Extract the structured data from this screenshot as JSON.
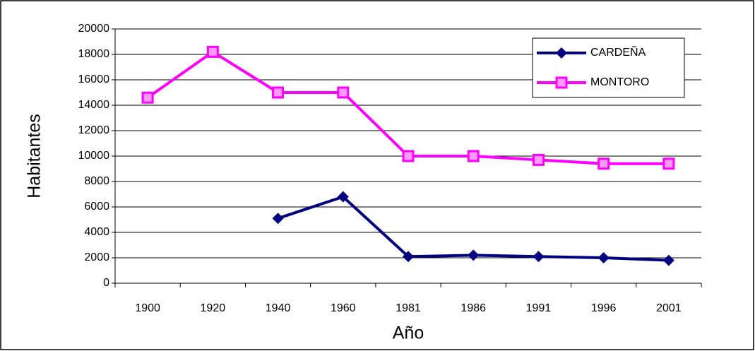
{
  "chart_data": {
    "type": "line",
    "x_label": "Año",
    "y_label": "Habitantes",
    "categories": [
      "1900",
      "1920",
      "1940",
      "1960",
      "1981",
      "1986",
      "1991",
      "1996",
      "2001"
    ],
    "series": [
      {
        "name": "CARDEÑA",
        "color": "#000080",
        "marker": "diamond",
        "values": [
          null,
          null,
          5100,
          6800,
          2100,
          2200,
          2100,
          2000,
          1800
        ]
      },
      {
        "name": "MONTORO",
        "color": "#ff00ff",
        "marker": "square",
        "values": [
          14600,
          18200,
          15000,
          15000,
          10000,
          10000,
          9700,
          9400,
          9400
        ]
      }
    ],
    "ylim": [
      0,
      20000
    ],
    "yticks": [
      0,
      2000,
      4000,
      6000,
      8000,
      10000,
      12000,
      14000,
      16000,
      18000,
      20000
    ],
    "grid": true,
    "legend": "top-right"
  }
}
